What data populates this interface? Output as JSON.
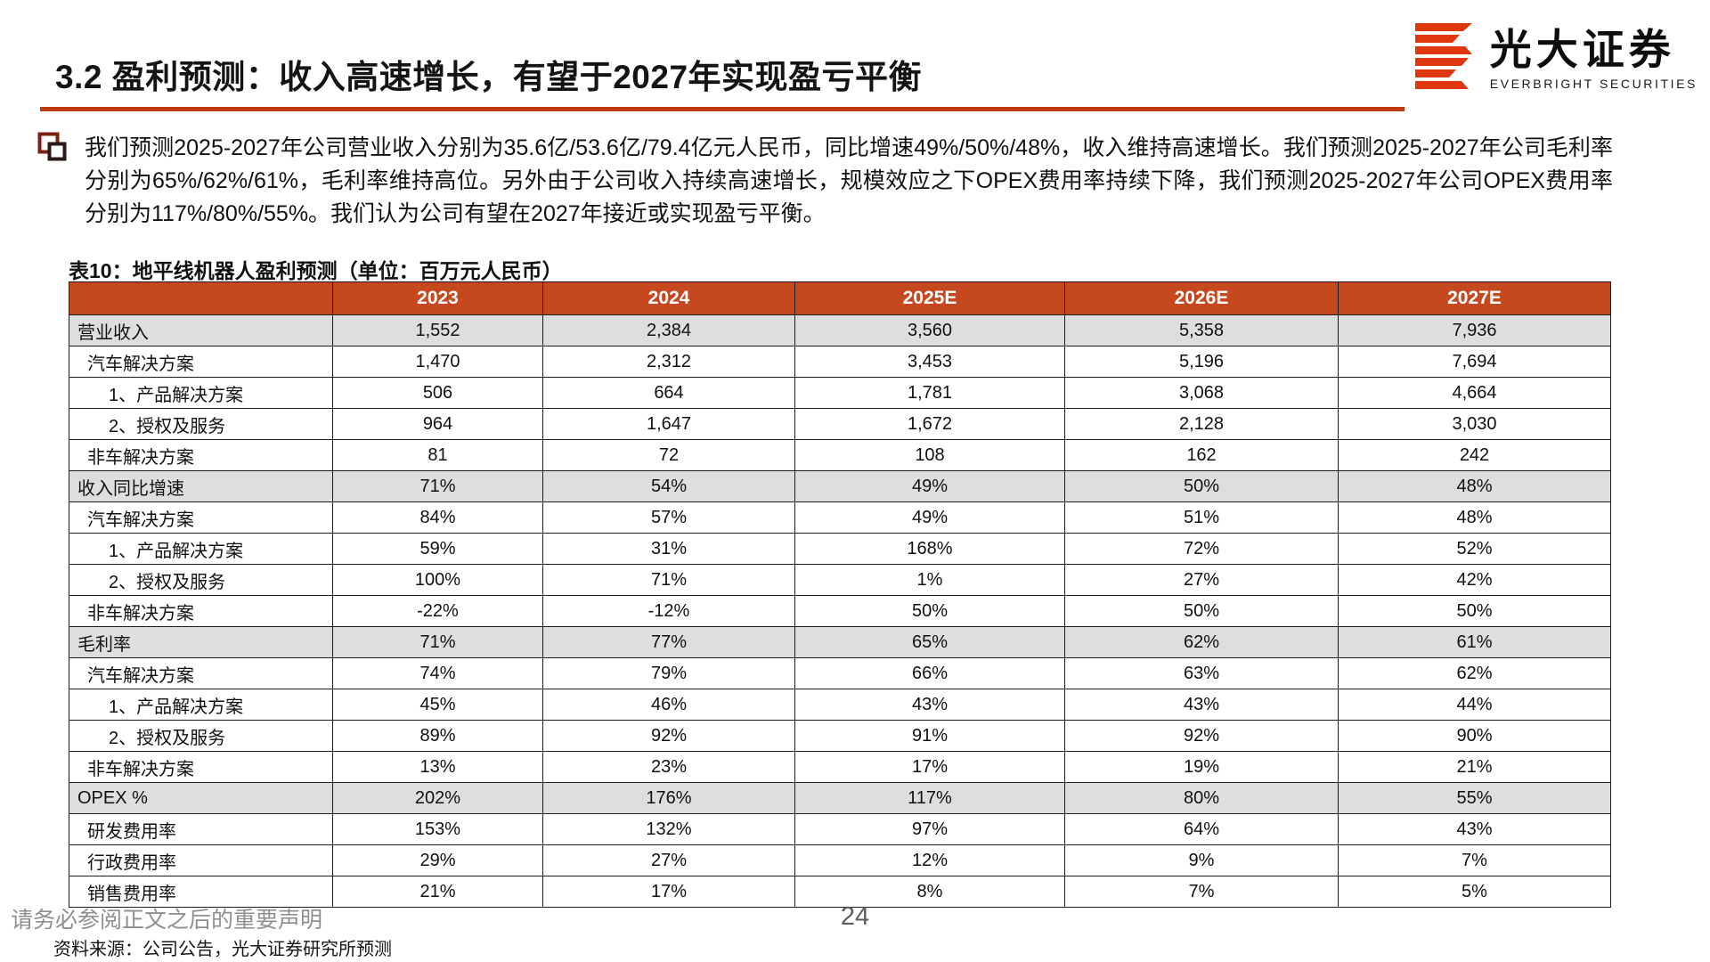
{
  "page": {
    "title": "3.2 盈利预测：收入高速增长，有望于2027年实现盈亏平衡",
    "page_number": "24",
    "footer_disclaimer": "请务必参阅正文之后的重要声明"
  },
  "brand": {
    "name_cn": "光大证券",
    "name_en": "EVERBRIGHT SECURITIES",
    "logo_icon": "everbright-stripes-logo",
    "logo_color": "#e0380e",
    "accent_color": "#bf3a10"
  },
  "summary": {
    "bullet_icon": "double-square-icon",
    "paragraph": "我们预测2025-2027年公司营业收入分别为35.6亿/53.6亿/79.4亿元人民币，同比增速49%/50%/48%，收入维持高速增长。我们预测2025-2027年公司毛利率分别为65%/62%/61%，毛利率维持高位。另外由于公司收入持续高速增长，规模效应之下OPEX费用率持续下降，我们预测2025-2027年公司OPEX费用率分别为117%/80%/55%。我们认为公司有望在2027年接近或实现盈亏平衡。"
  },
  "table": {
    "caption": "表10：地平线机器人盈利预测（单位：百万元人民币）",
    "source_note": "资料来源：公司公告，光大证券研究所预测",
    "header_bg": "#c5481e",
    "section_row_bg": "#dedede",
    "columns": [
      "",
      "2023",
      "2024",
      "2025E",
      "2026E",
      "2027E"
    ],
    "rows": [
      {
        "label": "营业收入",
        "indent": 0,
        "section": true,
        "values": [
          "1,552",
          "2,384",
          "3,560",
          "5,358",
          "7,936"
        ]
      },
      {
        "label": "汽车解决方案",
        "indent": 1,
        "section": false,
        "values": [
          "1,470",
          "2,312",
          "3,453",
          "5,196",
          "7,694"
        ]
      },
      {
        "label": "1、产品解决方案",
        "indent": 2,
        "section": false,
        "values": [
          "506",
          "664",
          "1,781",
          "3,068",
          "4,664"
        ]
      },
      {
        "label": "2、授权及服务",
        "indent": 2,
        "section": false,
        "values": [
          "964",
          "1,647",
          "1,672",
          "2,128",
          "3,030"
        ]
      },
      {
        "label": "非车解决方案",
        "indent": 1,
        "section": false,
        "values": [
          "81",
          "72",
          "108",
          "162",
          "242"
        ]
      },
      {
        "label": "收入同比增速",
        "indent": 0,
        "section": true,
        "values": [
          "71%",
          "54%",
          "49%",
          "50%",
          "48%"
        ]
      },
      {
        "label": "汽车解决方案",
        "indent": 1,
        "section": false,
        "values": [
          "84%",
          "57%",
          "49%",
          "51%",
          "48%"
        ]
      },
      {
        "label": "1、产品解决方案",
        "indent": 2,
        "section": false,
        "values": [
          "59%",
          "31%",
          "168%",
          "72%",
          "52%"
        ]
      },
      {
        "label": "2、授权及服务",
        "indent": 2,
        "section": false,
        "values": [
          "100%",
          "71%",
          "1%",
          "27%",
          "42%"
        ]
      },
      {
        "label": "非车解决方案",
        "indent": 1,
        "section": false,
        "values": [
          "-22%",
          "-12%",
          "50%",
          "50%",
          "50%"
        ]
      },
      {
        "label": "毛利率",
        "indent": 0,
        "section": true,
        "values": [
          "71%",
          "77%",
          "65%",
          "62%",
          "61%"
        ]
      },
      {
        "label": "汽车解决方案",
        "indent": 1,
        "section": false,
        "values": [
          "74%",
          "79%",
          "66%",
          "63%",
          "62%"
        ]
      },
      {
        "label": "1、产品解决方案",
        "indent": 2,
        "section": false,
        "values": [
          "45%",
          "46%",
          "43%",
          "43%",
          "44%"
        ]
      },
      {
        "label": "2、授权及服务",
        "indent": 2,
        "section": false,
        "values": [
          "89%",
          "92%",
          "91%",
          "92%",
          "90%"
        ]
      },
      {
        "label": "非车解决方案",
        "indent": 1,
        "section": false,
        "values": [
          "13%",
          "23%",
          "17%",
          "19%",
          "21%"
        ]
      },
      {
        "label": "OPEX %",
        "indent": 0,
        "section": true,
        "values": [
          "202%",
          "176%",
          "117%",
          "80%",
          "55%"
        ]
      },
      {
        "label": "研发费用率",
        "indent": 1,
        "section": false,
        "values": [
          "153%",
          "132%",
          "97%",
          "64%",
          "43%"
        ]
      },
      {
        "label": "行政费用率",
        "indent": 1,
        "section": false,
        "values": [
          "29%",
          "27%",
          "12%",
          "9%",
          "7%"
        ]
      },
      {
        "label": "销售费用率",
        "indent": 1,
        "section": false,
        "values": [
          "21%",
          "17%",
          "8%",
          "7%",
          "5%"
        ]
      }
    ]
  }
}
